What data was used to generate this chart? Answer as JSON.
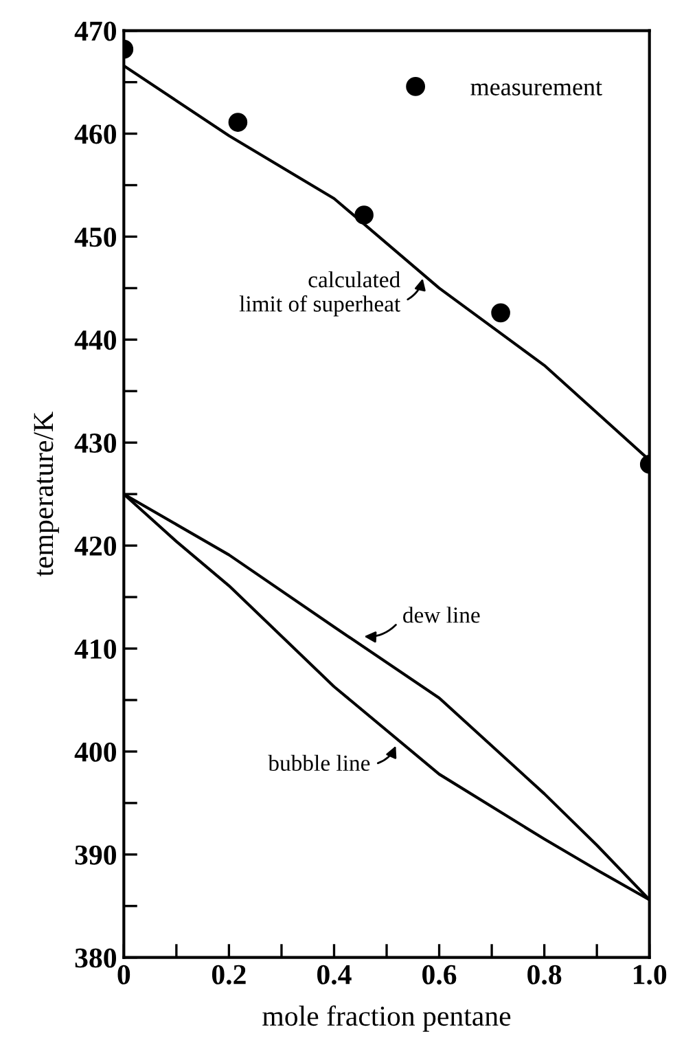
{
  "chart_data": {
    "type": "line",
    "xlabel": "mole fraction pentane",
    "ylabel": "temperature/K",
    "xlim": [
      0,
      1.0
    ],
    "ylim": [
      380,
      470
    ],
    "xticks": [
      0,
      {
        "value": 0.1,
        "label": null
      },
      0.2,
      {
        "value": 0.3,
        "label": null
      },
      0.4,
      {
        "value": 0.5,
        "label": null
      },
      0.6,
      {
        "value": 0.7,
        "label": null
      },
      0.8,
      {
        "value": 0.9,
        "label": null
      },
      {
        "value": 1.0,
        "label": "1.0"
      }
    ],
    "yticks": [
      380,
      {
        "value": 385,
        "label": null
      },
      390,
      {
        "value": 395,
        "label": null
      },
      400,
      {
        "value": 405,
        "label": null
      },
      410,
      {
        "value": 415,
        "label": null
      },
      420,
      {
        "value": 425,
        "label": null
      },
      430,
      {
        "value": 435,
        "label": null
      },
      440,
      {
        "value": 445,
        "label": null
      },
      450,
      {
        "value": 455,
        "label": null
      },
      460,
      {
        "value": 465,
        "label": null
      },
      470
    ],
    "grid": false,
    "legend": "top right",
    "series": [
      {
        "type": "scatter",
        "name": "measurement",
        "color": "#000000",
        "marker": "circle",
        "x": [
          0,
          0.217,
          0.457,
          0.717,
          1.0
        ],
        "values": [
          468.2,
          461.1,
          452.1,
          442.6,
          427.9
        ]
      },
      {
        "color": "#000000",
        "x": [
          0,
          0.2,
          0.4,
          0.6,
          0.8,
          1.0
        ],
        "values": [
          466.6,
          459.8,
          453.7,
          445.0,
          437.5,
          428.3
        ]
      },
      {
        "color": "#000000",
        "x": [
          0,
          0.2,
          0.4,
          0.6,
          0.8,
          0.9,
          1.0
        ],
        "values": [
          425,
          419.1,
          412.1,
          405.2,
          395.9,
          390.9,
          385.6
        ]
      },
      {
        "color": "#000000",
        "x": [
          0,
          0.1,
          0.2,
          0.4,
          0.6,
          0.8,
          0.9,
          1.0
        ],
        "values": [
          425,
          420.4,
          416.1,
          406.3,
          397.8,
          391.5,
          388.5,
          385.6
        ]
      }
    ],
    "annotations": [
      {
        "text": "calculated\n  limit of superheat",
        "x": 0.57,
        "y": 446.3
      },
      {
        "text": "dew line",
        "x": 0.45,
        "y": 411.2
      },
      {
        "text": "bubble line",
        "x": 0.52,
        "y": 400.9
      }
    ]
  }
}
